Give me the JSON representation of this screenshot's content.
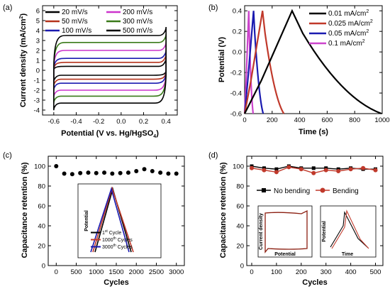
{
  "colors": {
    "20": "#000000",
    "200": "#cc33cc",
    "50": "#b5331c",
    "300": "#3a7a1a",
    "100": "#1a1ab0",
    "500": "#000000",
    "curve_black": "#000000",
    "curve_red": "#c0392b",
    "curve_blue": "#1a1ab0",
    "curve_magenta": "#cc44cc"
  },
  "chart_data": [
    {
      "panel_label": "(a)",
      "type": "line",
      "xlabel": "Potential (V vs. Hg/HgSO",
      "xlabel_sub": "4",
      "xlabel_end": ")",
      "ylabel": "Current density (mA/cm",
      "ylabel_sup": "2",
      "ylabel_end": ")",
      "xlim": [
        -0.7,
        0.5
      ],
      "ylim": [
        -4.5,
        6.5
      ],
      "x_ticks": [
        "-0.6",
        "-0.4",
        "-0.2",
        "0.0",
        "0.2",
        "0.4"
      ],
      "x_tick_values": [
        -0.6,
        -0.4,
        -0.2,
        0.0,
        0.2,
        0.4
      ],
      "y_ticks": [
        "-4",
        "-3",
        "-2",
        "-1",
        "0",
        "1",
        "2",
        "3",
        "4",
        "5",
        "6"
      ],
      "y_tick_values": [
        -4,
        -3,
        -2,
        -1,
        0,
        1,
        2,
        3,
        4,
        5,
        6
      ],
      "series": [
        {
          "name": "20 mV/s",
          "color_key": "20",
          "x_range": [
            -0.6,
            0.4
          ],
          "top": 0.4,
          "bottom": -0.5
        },
        {
          "name": "50 mV/s",
          "color_key": "50",
          "x_range": [
            -0.6,
            0.4
          ],
          "top": 0.8,
          "bottom": -0.9
        },
        {
          "name": "100 mV/s",
          "color_key": "100",
          "x_range": [
            -0.6,
            0.4
          ],
          "top": 1.2,
          "bottom": -1.3
        },
        {
          "name": "200 mV/s",
          "color_key": "200",
          "x_range": [
            -0.6,
            0.4
          ],
          "top": 2.0,
          "bottom": -2.0
        },
        {
          "name": "300 mV/s",
          "color_key": "300",
          "x_range": [
            -0.6,
            0.4
          ],
          "top": 2.8,
          "bottom": -2.6
        },
        {
          "name": "500 mV/s",
          "color_key": "500",
          "x_range": [
            -0.6,
            0.4
          ],
          "top": 3.5,
          "bottom": -3.3
        }
      ]
    },
    {
      "panel_label": "(b)",
      "type": "line",
      "xlabel": "Time (s)",
      "ylabel": "Potential (V)",
      "xlim": [
        0,
        1000
      ],
      "ylim": [
        -0.6,
        0.45
      ],
      "x_ticks": [
        "0",
        "200",
        "400",
        "600",
        "800",
        "1000"
      ],
      "x_tick_values": [
        0,
        200,
        400,
        600,
        800,
        1000
      ],
      "y_ticks": [
        "-0.6",
        "-0.4",
        "-0.2",
        "0.0",
        "0.2",
        "0.4"
      ],
      "y_tick_values": [
        -0.6,
        -0.4,
        -0.2,
        0.0,
        0.2,
        0.4
      ],
      "series": [
        {
          "name": "0.01 mA/cm",
          "sup": "2",
          "color_key": "curve_black",
          "peak_t": 345,
          "end_t": 995
        },
        {
          "name": "0.025 mA/cm",
          "sup": "2",
          "color_key": "curve_red",
          "peak_t": 130,
          "end_t": 285
        },
        {
          "name": "0.05 mA/cm",
          "sup": "2",
          "color_key": "curve_blue",
          "peak_t": 65,
          "end_t": 135
        },
        {
          "name": "0.1 mA/cm",
          "sup": "2",
          "color_key": "curve_magenta",
          "peak_t": 30,
          "end_t": 62
        }
      ]
    },
    {
      "panel_label": "(c)",
      "type": "scatter",
      "xlabel": "Cycles",
      "ylabel": "Capacitance retention (%)",
      "xlim": [
        -200,
        3200
      ],
      "ylim": [
        0,
        110
      ],
      "x_ticks": [
        "0",
        "500",
        "1000",
        "1500",
        "2000",
        "2500",
        "3000"
      ],
      "x_tick_values": [
        0,
        500,
        1000,
        1500,
        2000,
        2500,
        3000
      ],
      "y_ticks": [
        "0",
        "20",
        "40",
        "60",
        "80",
        "100"
      ],
      "y_tick_values": [
        0,
        20,
        40,
        60,
        80,
        100
      ],
      "x": [
        0,
        200,
        400,
        600,
        800,
        1000,
        1200,
        1400,
        1600,
        1800,
        2000,
        2200,
        2400,
        2600,
        2800,
        3000
      ],
      "y": [
        100,
        92.5,
        92,
        93,
        93.5,
        93,
        93.5,
        92.5,
        93,
        93.5,
        95,
        97,
        95,
        93.5,
        92.5,
        92.5
      ],
      "inset": {
        "ylabel": "Potential",
        "legend": [
          {
            "name": "1",
            "sup": "st",
            "rest": " Cycle",
            "color_key": "curve_black"
          },
          {
            "name": "1000",
            "sup": "th",
            "rest": " Cycles",
            "color_key": "curve_red"
          },
          {
            "name": "3000",
            "sup": "th",
            "rest": " Cycles",
            "color_key": "curve_blue"
          }
        ]
      }
    },
    {
      "panel_label": "(d)",
      "type": "line",
      "xlabel": "Cycles",
      "ylabel": "Capacitance retention (%)",
      "xlim": [
        -20,
        530
      ],
      "ylim": [
        0,
        110
      ],
      "x_ticks": [
        "0",
        "100",
        "200",
        "300",
        "400",
        "500"
      ],
      "x_tick_values": [
        0,
        100,
        200,
        300,
        400,
        500
      ],
      "y_ticks": [
        "0",
        "20",
        "40",
        "60",
        "80",
        "100"
      ],
      "y_tick_values": [
        0,
        20,
        40,
        60,
        80,
        100
      ],
      "series": [
        {
          "name": "No bending",
          "color_key": "curve_black",
          "marker": "square",
          "x": [
            0,
            50,
            100,
            150,
            200,
            250,
            300,
            350,
            400,
            450,
            500
          ],
          "y": [
            100,
            98,
            97,
            100,
            98,
            98,
            98,
            97,
            98,
            97,
            97
          ]
        },
        {
          "name": "Bending",
          "color_key": "curve_red",
          "marker": "circle",
          "x": [
            0,
            50,
            100,
            150,
            200,
            250,
            300,
            350,
            400,
            450,
            500
          ],
          "y": [
            98,
            96,
            94,
            99,
            97,
            93,
            96,
            95,
            97,
            98,
            96
          ]
        }
      ],
      "inset_left": {
        "ylabel": "Current density",
        "xlabel": "Potential"
      },
      "inset_right": {
        "ylabel": "Potential",
        "xlabel": "Time"
      }
    }
  ]
}
